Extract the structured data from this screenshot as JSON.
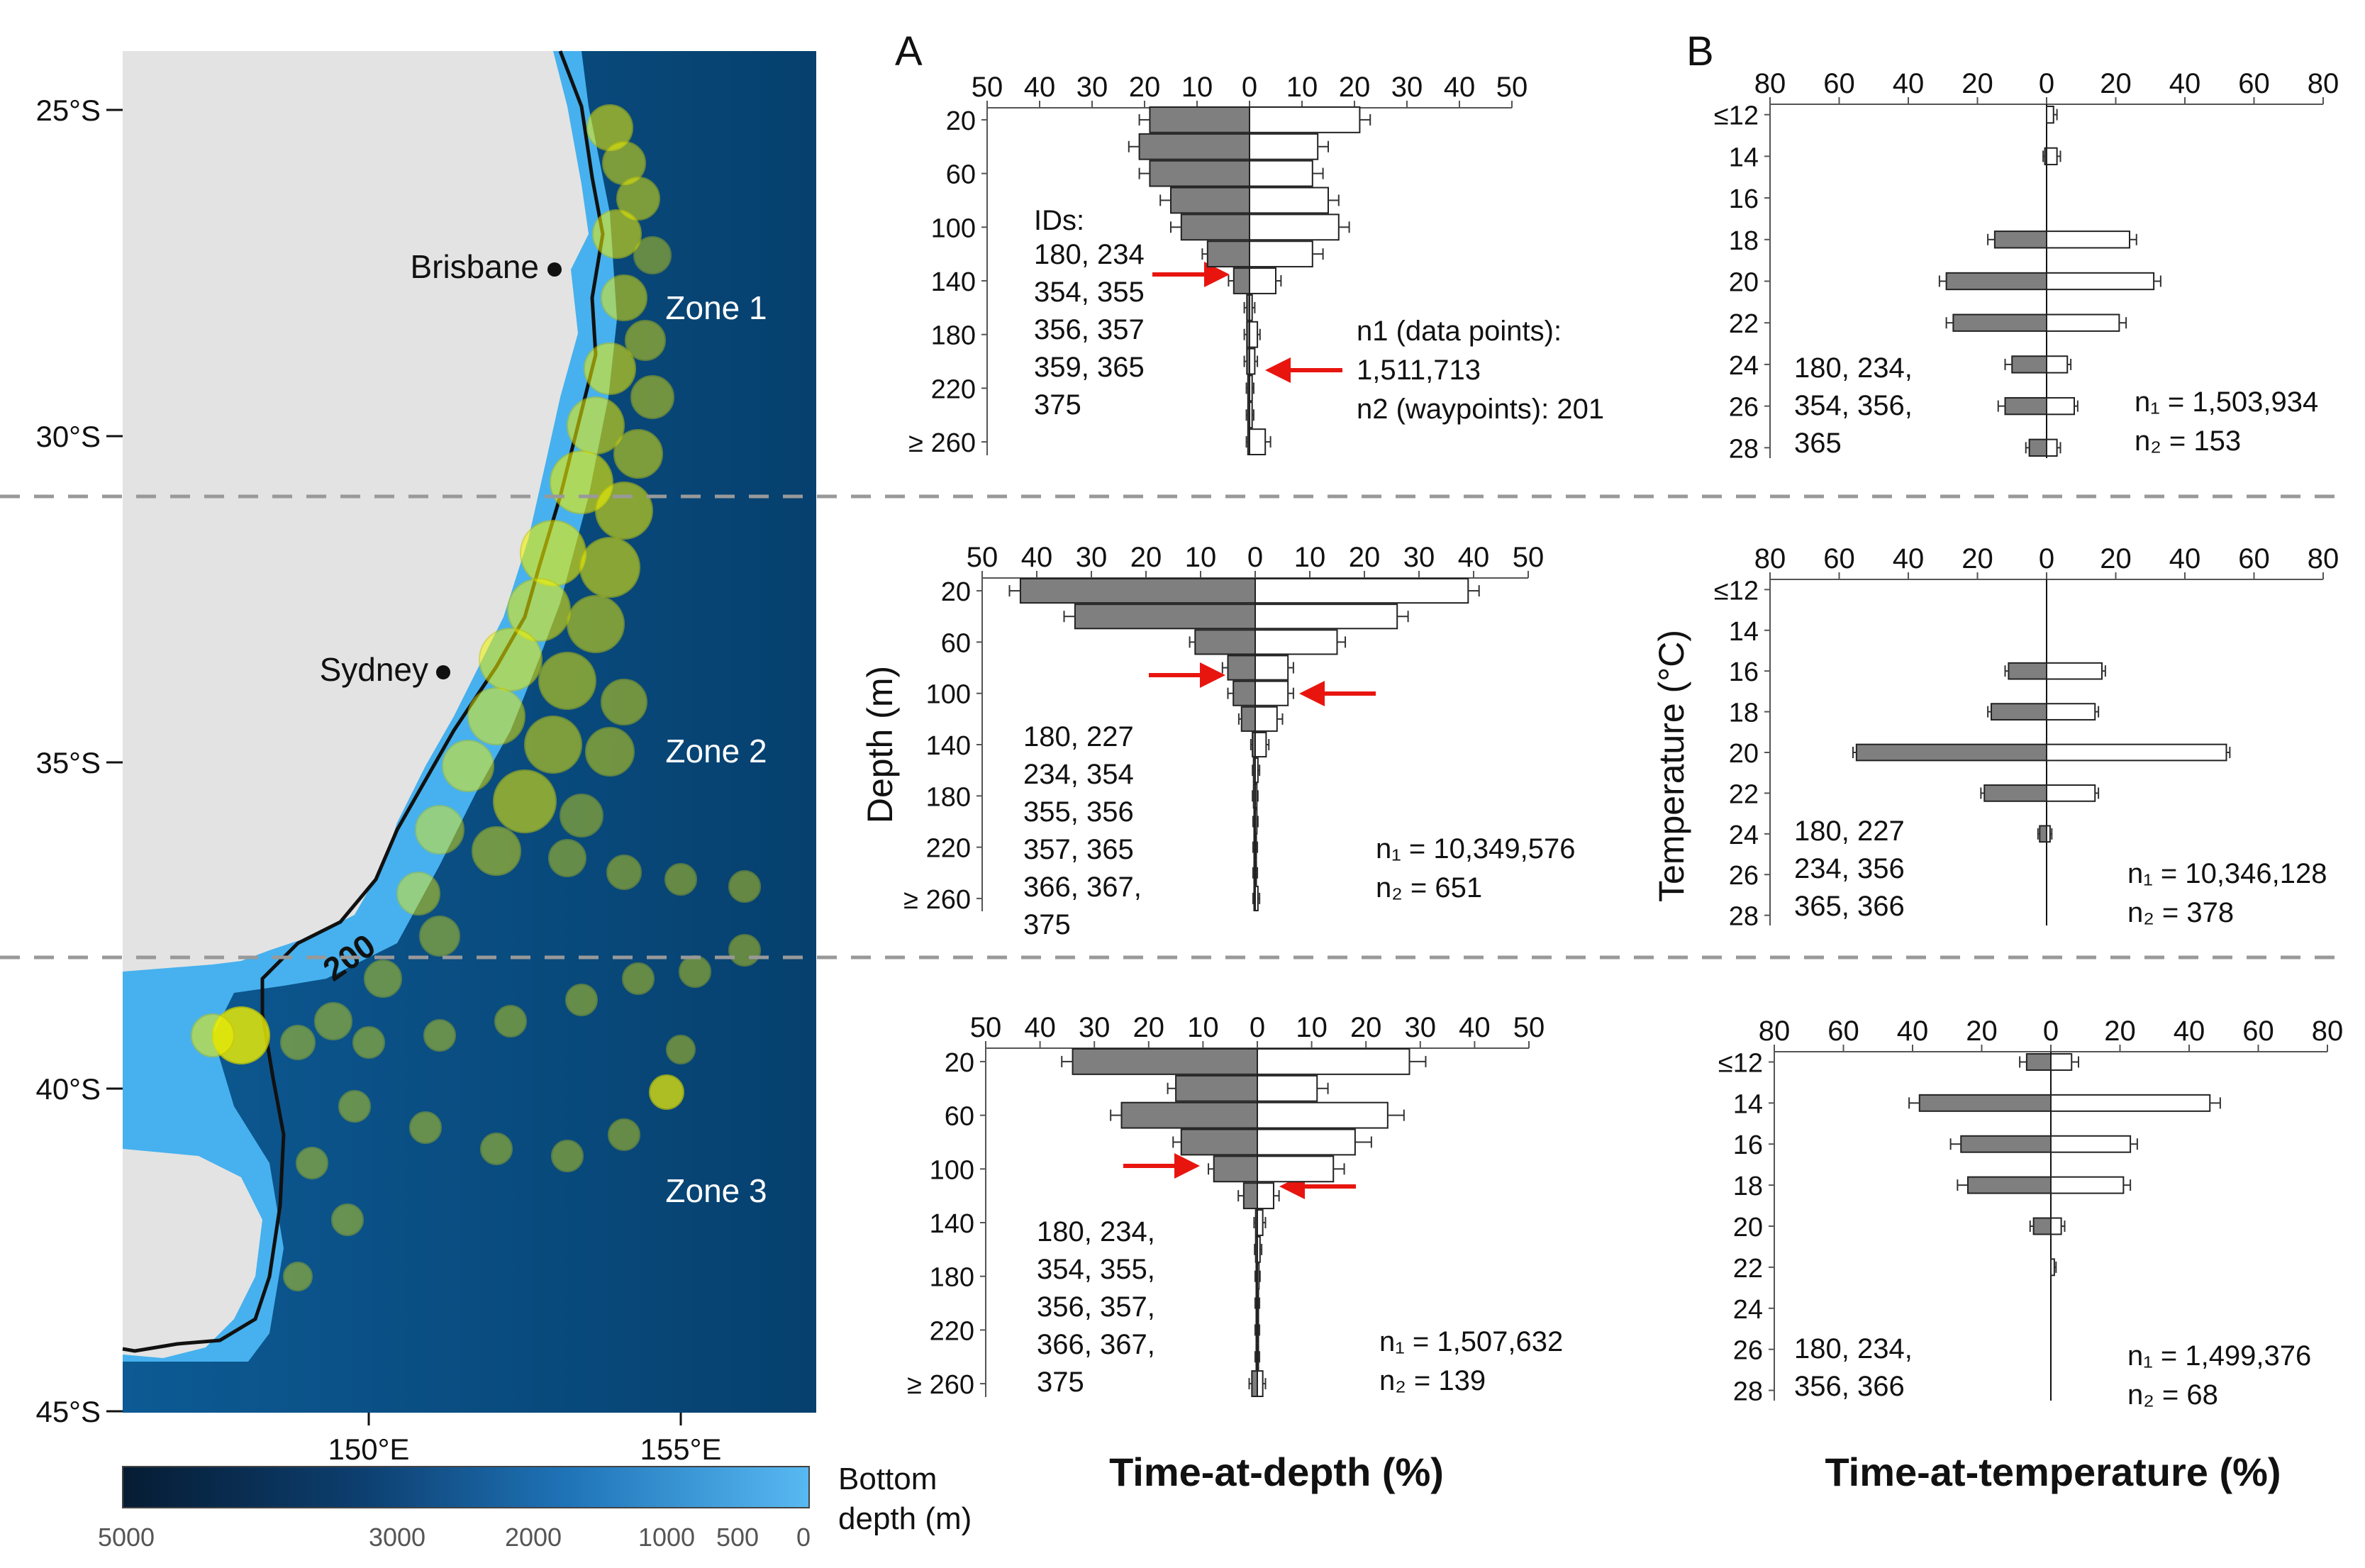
{
  "figure": {
    "panel_a_label": "A",
    "panel_b_label": "B",
    "depth_axis_label": "Depth (m)",
    "temp_axis_label": "Temperature (°C)",
    "depth_xlabel": "Time-at-depth (%)",
    "temp_xlabel": "Time-at-temperature (%)"
  },
  "map": {
    "lat_ticks": [
      "25°S",
      "30°S",
      "35°S",
      "40°S",
      "45°S"
    ],
    "lon_ticks": [
      "150°E",
      "155°E"
    ],
    "cities": [
      {
        "name": "Brisbane"
      },
      {
        "name": "Sydney"
      }
    ],
    "zones": [
      "Zone 1",
      "Zone 2",
      "Zone 3"
    ],
    "isobath_label": "200",
    "colorbar": {
      "title_line1": "Bottom",
      "title_line2": "depth (m)",
      "ticks": [
        "5000",
        "3000",
        "2000",
        "1000",
        "500",
        "0"
      ]
    },
    "colors": {
      "land": "#e3e3e3",
      "shelf": "#46b1ee",
      "deep": "#0a4b7f",
      "tracks": "#f2f200"
    }
  },
  "colors": {
    "day": "#7f7f7f",
    "night": "#ffffff",
    "arrow": "#e8150f",
    "divider": "#999999"
  },
  "chart_data": [
    {
      "type": "bar",
      "id": "depth-zone1",
      "zone": "Zone 1",
      "title": "",
      "xlabel": "Time-at-depth (%)",
      "ylabel": "Depth (m)",
      "xlim": [
        -50,
        50
      ],
      "x_ticks": [
        "50",
        "40",
        "30",
        "20",
        "10",
        "0",
        "10",
        "20",
        "30",
        "40",
        "50"
      ],
      "categories": [
        "20",
        "40",
        "60",
        "80",
        "100",
        "120",
        "140",
        "160",
        "180",
        "200",
        "220",
        "240",
        "≥ 260"
      ],
      "y_tick_labels": [
        "20",
        "60",
        "100",
        "140",
        "180",
        "220",
        "≥ 260"
      ],
      "series": [
        {
          "name": "day",
          "values": [
            19,
            21,
            19,
            15,
            13,
            8,
            3,
            0.5,
            0.5,
            0.5,
            0.3,
            0.3,
            0.3
          ],
          "errors": [
            2,
            2,
            2,
            2,
            2,
            1,
            1,
            0.5,
            0.5,
            0.5,
            0.3,
            0.3,
            0.3
          ]
        },
        {
          "name": "night",
          "values": [
            21,
            13,
            12,
            15,
            17,
            12,
            5,
            0.5,
            1.5,
            1,
            0.5,
            0.5,
            3
          ],
          "errors": [
            2,
            2,
            2,
            2,
            2,
            2,
            1,
            0.5,
            0.5,
            0.5,
            0.3,
            0.3,
            1
          ]
        }
      ],
      "ids_title": "IDs:",
      "ids": [
        "180, 234",
        "354, 355",
        "356, 357",
        "359, 365",
        "375"
      ],
      "n1": "n1 (data points):",
      "n1_value": "1,511,713",
      "n2": "n2 (waypoints): 201"
    },
    {
      "type": "bar",
      "id": "depth-zone2",
      "zone": "Zone 2",
      "title": "",
      "xlabel": "Time-at-depth (%)",
      "ylabel": "Depth (m)",
      "xlim": [
        -50,
        50
      ],
      "x_ticks": [
        "50",
        "40",
        "30",
        "20",
        "10",
        "0",
        "10",
        "20",
        "30",
        "40",
        "50"
      ],
      "categories": [
        "20",
        "40",
        "60",
        "80",
        "100",
        "120",
        "140",
        "160",
        "180",
        "200",
        "220",
        "240",
        "≥ 260"
      ],
      "y_tick_labels": [
        "20",
        "60",
        "100",
        "140",
        "180",
        "220",
        "≥ 260"
      ],
      "series": [
        {
          "name": "day",
          "values": [
            43,
            33,
            11,
            5,
            4,
            2.5,
            0.5,
            0.3,
            0.3,
            0.2,
            0.2,
            0.2,
            0.2
          ],
          "errors": [
            2,
            2,
            1,
            1,
            1,
            0.5,
            0.3,
            0.2,
            0.2,
            0.2,
            0.2,
            0.2,
            0.2
          ]
        },
        {
          "name": "night",
          "values": [
            39,
            26,
            15,
            6,
            6,
            4,
            2,
            0.5,
            0.3,
            0.3,
            0.2,
            0.2,
            0.5
          ],
          "errors": [
            2,
            2,
            1.5,
            1,
            1,
            1,
            0.5,
            0.3,
            0.2,
            0.2,
            0.2,
            0.2,
            0.3
          ]
        }
      ],
      "ids": [
        "180, 227",
        "234, 354",
        "355, 356",
        "357, 365",
        "366, 367,",
        "375"
      ],
      "n1": "n₁ = 10,349,576",
      "n2": "n₂ = 651"
    },
    {
      "type": "bar",
      "id": "depth-zone3",
      "zone": "Zone 3",
      "title": "",
      "xlabel": "Time-at-depth (%)",
      "ylabel": "Depth (m)",
      "xlim": [
        -50,
        50
      ],
      "x_ticks": [
        "50",
        "40",
        "30",
        "20",
        "10",
        "0",
        "10",
        "20",
        "30",
        "40",
        "50"
      ],
      "categories": [
        "20",
        "40",
        "60",
        "80",
        "100",
        "120",
        "140",
        "160",
        "180",
        "200",
        "220",
        "240",
        "≥ 260"
      ],
      "y_tick_labels": [
        "20",
        "60",
        "100",
        "140",
        "180",
        "220",
        "≥ 260"
      ],
      "series": [
        {
          "name": "day",
          "values": [
            34,
            15,
            25,
            14,
            8,
            2.5,
            0.3,
            0.3,
            0.2,
            0.2,
            0.2,
            0.2,
            1
          ],
          "errors": [
            2,
            1.5,
            2,
            1.5,
            1,
            1,
            0.3,
            0.2,
            0.2,
            0.2,
            0.2,
            0.2,
            0.5
          ]
        },
        {
          "name": "night",
          "values": [
            28,
            11,
            24,
            18,
            14,
            3,
            1,
            0.5,
            0.3,
            0.2,
            0.2,
            0.2,
            1
          ],
          "errors": [
            3,
            2,
            3,
            3,
            2,
            1,
            0.5,
            0.3,
            0.2,
            0.2,
            0.2,
            0.2,
            0.5
          ]
        }
      ],
      "ids": [
        "180, 234,",
        "354, 355,",
        "356, 357,",
        "366,  367,",
        "375"
      ],
      "n1": "n₁ = 1,507,632",
      "n2": "n₂ = 139"
    },
    {
      "type": "bar",
      "id": "temp-zone1",
      "zone": "Zone 1",
      "title": "",
      "xlabel": "Time-at-temperature (%)",
      "ylabel": "Temperature (°C)",
      "xlim": [
        -80,
        80
      ],
      "x_ticks": [
        "80",
        "60",
        "40",
        "20",
        "0",
        "20",
        "40",
        "60",
        "80"
      ],
      "categories": [
        "≤12",
        "13",
        "14",
        "15",
        "16",
        "17",
        "18",
        "19",
        "20",
        "21",
        "22",
        "23",
        "24",
        "25",
        "26",
        "27",
        "28"
      ],
      "y_tick_labels": [
        "≤12",
        "14",
        "16",
        "18",
        "20",
        "22",
        "24",
        "26",
        "28"
      ],
      "series": [
        {
          "name": "day",
          "values": [
            0,
            0,
            0.5,
            0,
            0,
            0,
            15,
            0,
            29,
            0,
            27,
            0,
            10,
            0,
            12,
            0,
            5
          ],
          "errors": [
            0,
            0,
            0.5,
            0,
            0,
            0,
            2,
            0,
            2,
            0,
            2,
            0,
            2,
            0,
            2,
            0,
            1
          ]
        },
        {
          "name": "night",
          "values": [
            2,
            0,
            3,
            0,
            0,
            0,
            24,
            0,
            31,
            0,
            21,
            0,
            6,
            0,
            8,
            0,
            3
          ],
          "errors": [
            1,
            0,
            1,
            0,
            0,
            0,
            2,
            0,
            2,
            0,
            2,
            0,
            1,
            0,
            1,
            0,
            1
          ]
        }
      ],
      "ids": [
        "180, 234,",
        "354, 356,",
        "365"
      ],
      "n1": "n₁ = 1,503,934",
      "n2": "n₂ = 153"
    },
    {
      "type": "bar",
      "id": "temp-zone2",
      "zone": "Zone 2",
      "title": "",
      "xlabel": "Time-at-temperature (%)",
      "ylabel": "Temperature (°C)",
      "xlim": [
        -80,
        80
      ],
      "x_ticks": [
        "80",
        "60",
        "40",
        "20",
        "0",
        "20",
        "40",
        "60",
        "80"
      ],
      "categories": [
        "≤12",
        "13",
        "14",
        "15",
        "16",
        "17",
        "18",
        "19",
        "20",
        "21",
        "22",
        "23",
        "24",
        "25",
        "26",
        "27",
        "28"
      ],
      "y_tick_labels": [
        "≤12",
        "14",
        "16",
        "18",
        "20",
        "22",
        "24",
        "26",
        "28"
      ],
      "series": [
        {
          "name": "day",
          "values": [
            0,
            0,
            0,
            0,
            11,
            0,
            16,
            0,
            55,
            0,
            18,
            0,
            2,
            0,
            0,
            0,
            0
          ],
          "errors": [
            0,
            0,
            0,
            0,
            1,
            0,
            1,
            0,
            1,
            0,
            1,
            0,
            0.5,
            0,
            0,
            0,
            0
          ]
        },
        {
          "name": "night",
          "values": [
            0,
            0,
            0,
            0,
            16,
            0,
            14,
            0,
            52,
            0,
            14,
            0,
            1,
            0,
            0,
            0,
            0
          ],
          "errors": [
            0,
            0,
            0,
            0,
            1,
            0,
            1,
            0,
            1,
            0,
            1,
            0,
            0.5,
            0,
            0,
            0,
            0
          ]
        }
      ],
      "ids": [
        "180, 227",
        "234, 356",
        "365, 366"
      ],
      "n1": "n₁ = 10,346,128",
      "n2": "n₂ = 378"
    },
    {
      "type": "bar",
      "id": "temp-zone3",
      "zone": "Zone 3",
      "title": "",
      "xlabel": "Time-at-temperature (%)",
      "ylabel": "Temperature (°C)",
      "xlim": [
        -80,
        80
      ],
      "x_ticks": [
        "80",
        "60",
        "40",
        "20",
        "0",
        "20",
        "40",
        "60",
        "80"
      ],
      "categories": [
        "≤12",
        "13",
        "14",
        "15",
        "16",
        "17",
        "18",
        "19",
        "20",
        "21",
        "22",
        "23",
        "24",
        "25",
        "26",
        "27",
        "28"
      ],
      "y_tick_labels": [
        "≤12",
        "14",
        "16",
        "18",
        "20",
        "22",
        "24",
        "26",
        "28"
      ],
      "series": [
        {
          "name": "day",
          "values": [
            7,
            0,
            38,
            0,
            26,
            0,
            24,
            0,
            5,
            0,
            0,
            0,
            0,
            0,
            0,
            0,
            0
          ],
          "errors": [
            2,
            0,
            3,
            0,
            3,
            0,
            3,
            0,
            1,
            0,
            0,
            0,
            0,
            0,
            0,
            0,
            0
          ]
        },
        {
          "name": "night",
          "values": [
            6,
            0,
            46,
            0,
            23,
            0,
            21,
            0,
            3,
            0,
            1,
            0,
            0,
            0,
            0,
            0,
            0
          ],
          "errors": [
            2,
            0,
            3,
            0,
            2,
            0,
            2,
            0,
            1,
            0,
            0.5,
            0,
            0,
            0,
            0,
            0,
            0
          ]
        }
      ],
      "ids": [
        "180, 234,",
        "356, 366"
      ],
      "n1": "n₁ = 1,499,376",
      "n2": "n₂ = 68"
    }
  ]
}
